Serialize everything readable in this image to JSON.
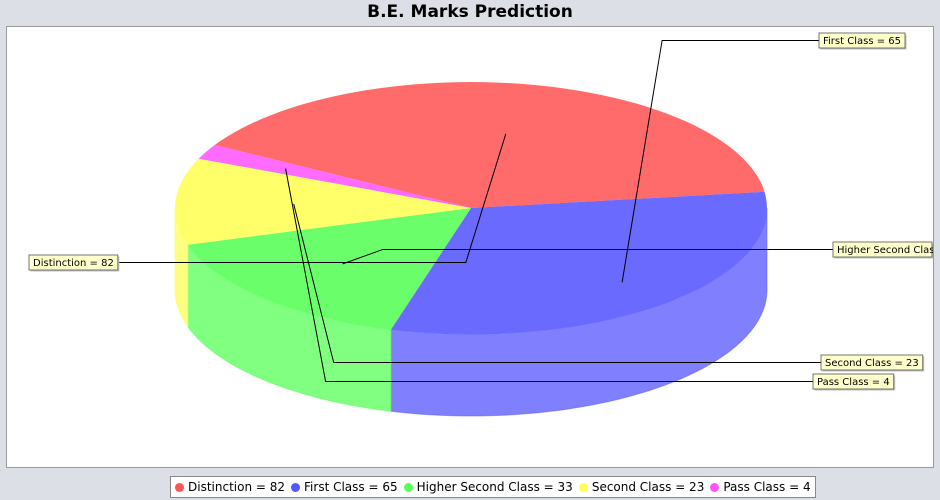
{
  "colors": {
    "background": "#dcdfe6",
    "plot_background": "#ffffff",
    "label_box": "#ffffcc"
  },
  "chart_data": {
    "type": "pie",
    "style": "3d-exploded-transparent",
    "title": "B.E. Marks Prediction",
    "start_angle_deg": 150,
    "direction": "clockwise",
    "slices": [
      {
        "name": "Distinction",
        "value": 82,
        "color": "#ff5555",
        "label": "Distinction = 82"
      },
      {
        "name": "First Class",
        "value": 65,
        "color": "#5555ff",
        "label": "First Class = 65"
      },
      {
        "name": "Higher Second Class",
        "value": 33,
        "color": "#55ff55",
        "label": "Higher Second Class = 33"
      },
      {
        "name": "Second Class",
        "value": 23,
        "color": "#ffff55",
        "label": "Second Class = 23"
      },
      {
        "name": "Pass Class",
        "value": 4,
        "color": "#ff55ff",
        "label": "Pass Class = 4"
      }
    ],
    "legend": {
      "placement": "bottom",
      "entries": [
        "Distinction = 82",
        "First Class = 65",
        "Higher Second Class = 33",
        "Second Class = 23",
        "Pass Class = 4"
      ]
    }
  }
}
